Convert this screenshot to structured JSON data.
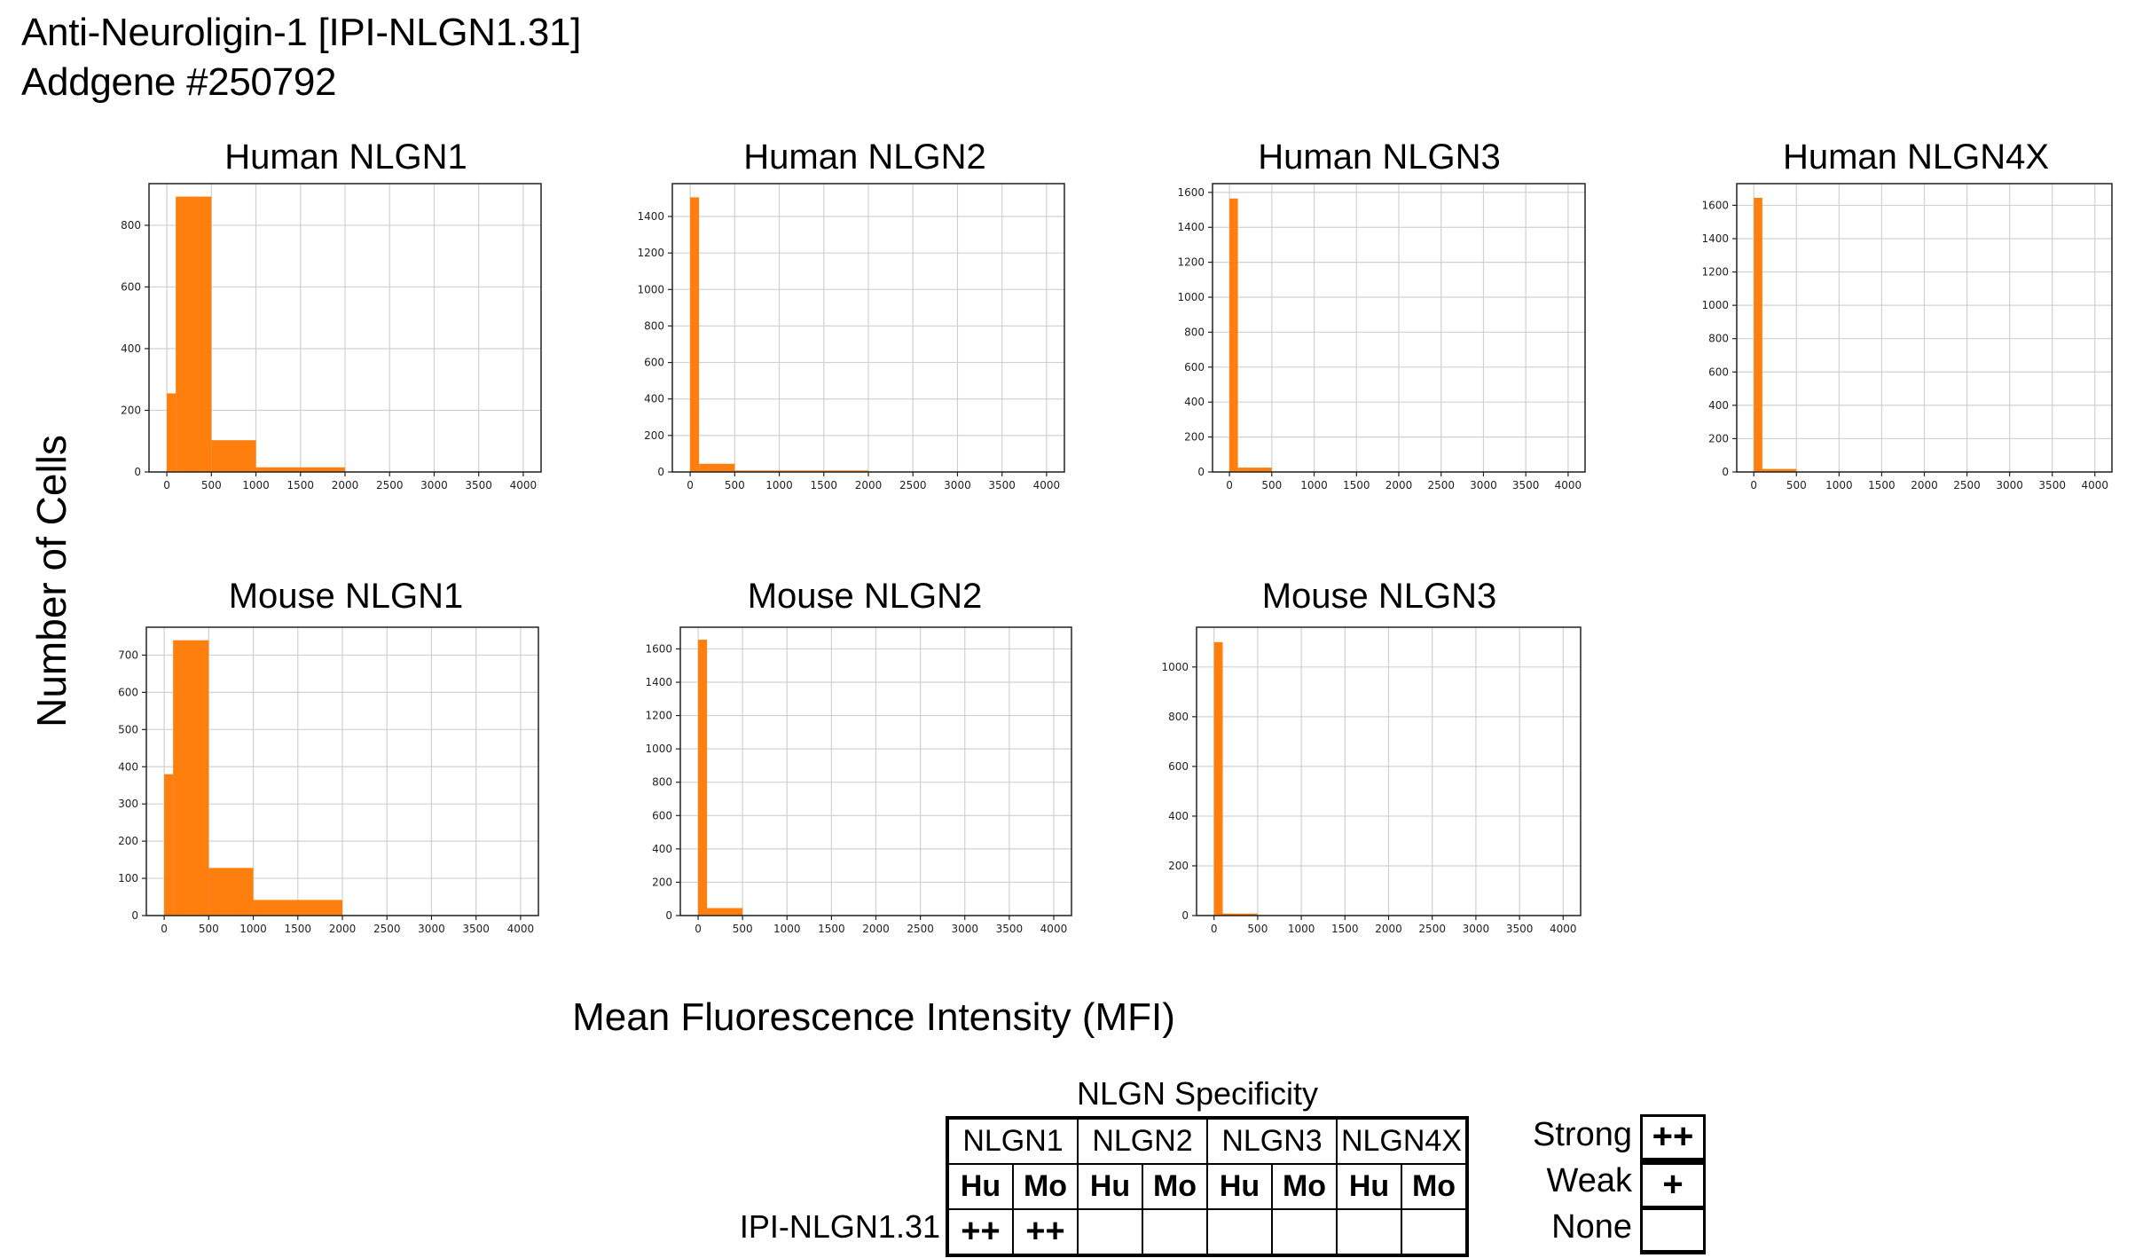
{
  "header": {
    "title_line1": "Anti-Neuroligin-1 [IPI-NLGN1.31]",
    "title_line2": "Addgene #250792"
  },
  "axes": {
    "ylabel": "Number of Cells",
    "xlabel": "Mean Fluorescence Intensity (MFI)"
  },
  "colors": {
    "bar": "#ff7f0e",
    "grid": "#d0d0d0"
  },
  "chart_data": [
    {
      "type": "histogram",
      "title": "Human NLGN1",
      "bins": [
        [
          0,
          100,
          255
        ],
        [
          100,
          500,
          893
        ],
        [
          500,
          1000,
          103
        ],
        [
          1000,
          2000,
          15
        ]
      ],
      "xlim": [
        -200,
        4200
      ],
      "ylim": [
        0,
        935
      ],
      "xticks": [
        0,
        500,
        1000,
        1500,
        2000,
        2500,
        3000,
        3500,
        4000
      ],
      "yticks": [
        0,
        200,
        400,
        600,
        800
      ]
    },
    {
      "type": "histogram",
      "title": "Human NLGN2",
      "bins": [
        [
          0,
          100,
          1505
        ],
        [
          100,
          500,
          45
        ],
        [
          500,
          2000,
          8
        ]
      ],
      "xlim": [
        -200,
        4200
      ],
      "ylim": [
        0,
        1580
      ],
      "xticks": [
        0,
        500,
        1000,
        1500,
        2000,
        2500,
        3000,
        3500,
        4000
      ],
      "yticks": [
        0,
        200,
        400,
        600,
        800,
        1000,
        1200,
        1400
      ]
    },
    {
      "type": "histogram",
      "title": "Human NLGN3",
      "bins": [
        [
          0,
          100,
          1565
        ],
        [
          100,
          500,
          25
        ],
        [
          500,
          2000,
          2
        ]
      ],
      "xlim": [
        -200,
        4200
      ],
      "ylim": [
        0,
        1650
      ],
      "xticks": [
        0,
        500,
        1000,
        1500,
        2000,
        2500,
        3000,
        3500,
        4000
      ],
      "yticks": [
        0,
        200,
        400,
        600,
        800,
        1000,
        1200,
        1400,
        1600
      ]
    },
    {
      "type": "histogram",
      "title": "Human NLGN4X",
      "bins": [
        [
          0,
          100,
          1645
        ],
        [
          100,
          500,
          18
        ],
        [
          500,
          2000,
          1
        ]
      ],
      "xlim": [
        -200,
        4200
      ],
      "ylim": [
        0,
        1730
      ],
      "xticks": [
        0,
        500,
        1000,
        1500,
        2000,
        2500,
        3000,
        3500,
        4000
      ],
      "yticks": [
        0,
        200,
        400,
        600,
        800,
        1000,
        1200,
        1400,
        1600
      ]
    },
    {
      "type": "histogram",
      "title": "Mouse NLGN1",
      "bins": [
        [
          0,
          100,
          380
        ],
        [
          100,
          500,
          740
        ],
        [
          500,
          1000,
          128
        ],
        [
          1000,
          2000,
          42
        ]
      ],
      "xlim": [
        -200,
        4200
      ],
      "ylim": [
        0,
        775
      ],
      "xticks": [
        0,
        500,
        1000,
        1500,
        2000,
        2500,
        3000,
        3500,
        4000
      ],
      "yticks": [
        0,
        100,
        200,
        300,
        400,
        500,
        600,
        700
      ]
    },
    {
      "type": "histogram",
      "title": "Mouse NLGN2",
      "bins": [
        [
          0,
          100,
          1655
        ],
        [
          100,
          500,
          45
        ],
        [
          500,
          2000,
          2
        ]
      ],
      "xlim": [
        -200,
        4200
      ],
      "ylim": [
        0,
        1730
      ],
      "xticks": [
        0,
        500,
        1000,
        1500,
        2000,
        2500,
        3000,
        3500,
        4000
      ],
      "yticks": [
        0,
        200,
        400,
        600,
        800,
        1000,
        1200,
        1400,
        1600
      ]
    },
    {
      "type": "histogram",
      "title": "Mouse NLGN3",
      "bins": [
        [
          0,
          100,
          1100
        ],
        [
          100,
          500,
          8
        ]
      ],
      "xlim": [
        -200,
        4200
      ],
      "ylim": [
        0,
        1160
      ],
      "xticks": [
        0,
        500,
        1000,
        1500,
        2000,
        2500,
        3000,
        3500,
        4000
      ],
      "yticks": [
        0,
        200,
        400,
        600,
        800,
        1000
      ]
    }
  ],
  "specificity": {
    "title": "NLGN Specificity",
    "groups": [
      "NLGN1",
      "NLGN2",
      "NLGN3",
      "NLGN4X"
    ],
    "species": [
      "Hu",
      "Mo",
      "Hu",
      "Mo",
      "Hu",
      "Mo",
      "Hu",
      "Mo"
    ],
    "row_label": "IPI-NLGN1.31",
    "results": [
      "++",
      "++",
      "",
      "",
      "",
      "",
      "",
      ""
    ]
  },
  "legend": [
    {
      "label": "Strong",
      "symbol": "++"
    },
    {
      "label": "Weak",
      "symbol": "+"
    },
    {
      "label": "None",
      "symbol": ""
    }
  ]
}
